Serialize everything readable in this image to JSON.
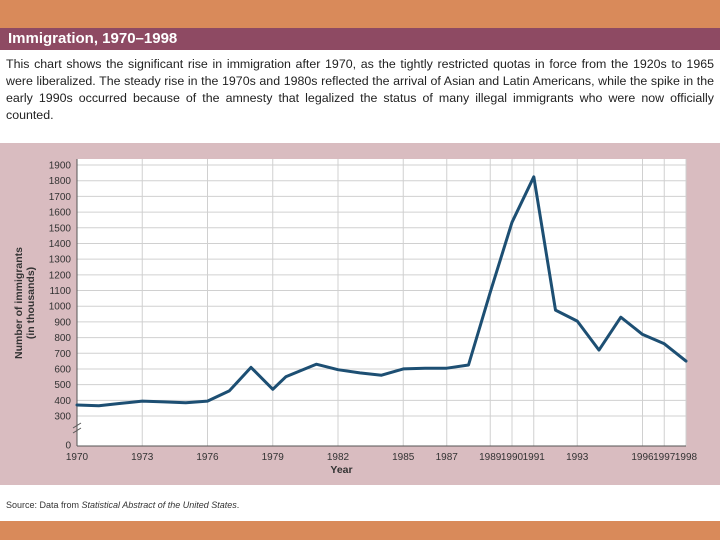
{
  "header": {
    "title": "Immigration, 1970–1998"
  },
  "caption": "This chart shows the significant rise in immigration after 1970, as the tightly restricted quotas in force from the 1920s to 1965 were liberalized. The steady rise in the 1970s and 1980s reflected the arrival of Asian and Latin Americans, while the spike in the early 1990s occurred because of the amnesty that legalized the status of many illegal immigrants who were now officially counted.",
  "source": {
    "prefix": "Source: Data from ",
    "italic": "Statistical Abstract of the United States",
    "suffix": "."
  },
  "colors": {
    "line": "#1d4f73",
    "grid": "#d0d0d0",
    "panel": "#d9bcc0",
    "title_bar": "#8e4a63",
    "accent_band": "#d98a5a"
  },
  "chart_data": {
    "type": "line",
    "title": "",
    "xlabel": "Year",
    "ylabel": "Number of immigrants (in thousands)",
    "ylim": [
      0,
      1900
    ],
    "axis_break": [
      0,
      300
    ],
    "grid": true,
    "x_tick_labels": [
      "1970",
      "1973",
      "1976",
      "1979",
      "1982",
      "1985",
      "1987",
      "1989",
      "1990",
      "1991",
      "1993",
      "1996",
      "1997",
      "1998"
    ],
    "y_tick_labels": [
      "0",
      "300",
      "400",
      "500",
      "600",
      "700",
      "800",
      "900",
      "1000",
      "1100",
      "1200",
      "1300",
      "1400",
      "1500",
      "1600",
      "1700",
      "1800",
      "1900"
    ],
    "x_tick_positions": [
      1970,
      1973,
      1976,
      1979,
      1982,
      1985,
      1987,
      1989,
      1990,
      1991,
      1993,
      1996,
      1997,
      1998
    ],
    "series": [
      {
        "x": [
          1970,
          1971,
          1972,
          1973,
          1974,
          1975,
          1976,
          1977,
          1978,
          1979,
          1979.6,
          1980.3,
          1981,
          1982,
          1983,
          1984,
          1985,
          1986,
          1987,
          1988,
          1989,
          1990,
          1991,
          1992,
          1993,
          1994,
          1995,
          1996,
          1997,
          1998
        ],
        "y": [
          370,
          365,
          380,
          395,
          390,
          385,
          395,
          460,
          610,
          470,
          550,
          590,
          630,
          595,
          575,
          560,
          600,
          605,
          605,
          625,
          1090,
          1535,
          1825,
          975,
          905,
          720,
          930,
          820,
          760,
          650
        ]
      }
    ]
  }
}
